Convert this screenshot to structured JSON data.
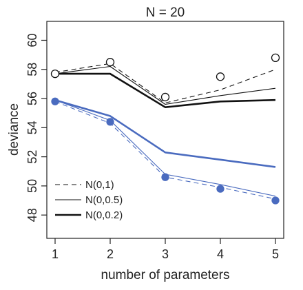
{
  "chart_data": {
    "type": "line",
    "title": "N = 20",
    "xlabel": "number of parameters",
    "ylabel": "deviance",
    "x": [
      1,
      2,
      3,
      4,
      5
    ],
    "x_ticks": [
      1,
      2,
      3,
      4,
      5
    ],
    "y_ticks": [
      48,
      50,
      52,
      54,
      56,
      58,
      60
    ],
    "xlim": [
      0.85,
      5.15
    ],
    "ylim": [
      46.4,
      61.3
    ],
    "colors": {
      "black": "#111111",
      "blue": "#4a6bbf"
    },
    "legend": {
      "placement": "bottom-left",
      "entries": [
        {
          "label": "N(0,1)",
          "style": "dashed",
          "weight": "thin"
        },
        {
          "label": "N(0,0.5)",
          "style": "solid",
          "weight": "thin"
        },
        {
          "label": "N(0,0.2)",
          "style": "solid",
          "weight": "thick"
        }
      ]
    },
    "points": [
      {
        "name": "test-points",
        "color": "black",
        "fill": "open",
        "values": [
          57.7,
          58.5,
          56.1,
          57.5,
          58.8
        ]
      },
      {
        "name": "train-points",
        "color": "blue",
        "fill": "filled",
        "values": [
          55.8,
          54.4,
          50.6,
          49.8,
          49.0
        ]
      }
    ],
    "series": [
      {
        "prior": "N(0,1)",
        "group": "test",
        "color": "black",
        "style": "dashed",
        "width": 1.1,
        "values": [
          57.8,
          58.4,
          55.7,
          56.6,
          58.0
        ]
      },
      {
        "prior": "N(0,0.5)",
        "group": "test",
        "color": "black",
        "style": "solid",
        "width": 1.1,
        "values": [
          57.7,
          58.2,
          55.6,
          56.2,
          56.7
        ]
      },
      {
        "prior": "N(0,0.2)",
        "group": "test",
        "color": "black",
        "style": "solid",
        "width": 2.6,
        "values": [
          57.7,
          57.7,
          55.4,
          55.8,
          55.9
        ]
      },
      {
        "prior": "N(0,1)",
        "group": "train",
        "color": "blue",
        "style": "dashed",
        "width": 1.1,
        "values": [
          55.8,
          54.3,
          50.6,
          49.9,
          49.1
        ]
      },
      {
        "prior": "N(0,0.5)",
        "group": "train",
        "color": "blue",
        "style": "solid",
        "width": 1.1,
        "values": [
          55.9,
          54.5,
          50.8,
          50.1,
          49.3
        ]
      },
      {
        "prior": "N(0,0.2)",
        "group": "train",
        "color": "blue",
        "style": "solid",
        "width": 2.6,
        "values": [
          55.9,
          54.8,
          52.3,
          51.8,
          51.3
        ]
      }
    ]
  }
}
